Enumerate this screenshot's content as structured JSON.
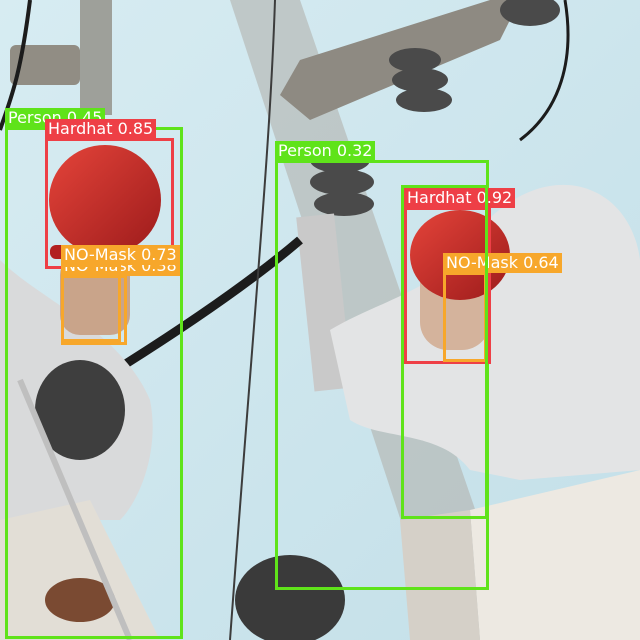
{
  "detections": [
    {
      "class": "Person",
      "confidence": "0.45",
      "text": "Person 0.45"
    },
    {
      "class": "Hardhat",
      "confidence": "0.85",
      "text": "Hardhat 0.85"
    },
    {
      "class": "NO-Mask",
      "confidence": "0.38",
      "text": "NO-Mask 0.38"
    },
    {
      "class": "NO-Mask",
      "confidence": "0.73",
      "text": "NO-Mask 0.73"
    },
    {
      "class": "Person",
      "confidence": "0.32",
      "text": "Person 0.32"
    },
    {
      "class": "Hardhat",
      "confidence": "0.92",
      "text": "Hardhat 0.92"
    },
    {
      "class": "NO-Mask",
      "confidence": "0.64",
      "text": "NO-Mask 0.64"
    }
  ],
  "colors": {
    "person": "#5fe31a",
    "hardhat": "#ee3f46",
    "no_mask": "#f7a72b",
    "sky": "#cfe6ee"
  }
}
